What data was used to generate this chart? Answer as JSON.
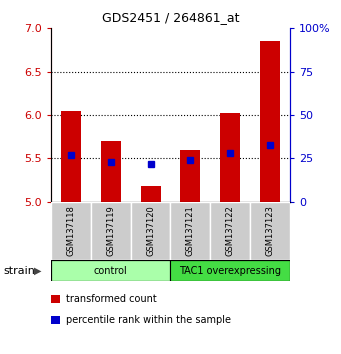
{
  "title": "GDS2451 / 264861_at",
  "samples": [
    "GSM137118",
    "GSM137119",
    "GSM137120",
    "GSM137121",
    "GSM137122",
    "GSM137123"
  ],
  "transformed_counts": [
    6.05,
    5.7,
    5.18,
    5.6,
    6.02,
    6.85
  ],
  "percentile_ranks": [
    27,
    23,
    22,
    24,
    28,
    33
  ],
  "ylim": [
    5.0,
    7.0
  ],
  "yticks": [
    5.0,
    5.5,
    6.0,
    6.5,
    7.0
  ],
  "right_yticks": [
    0,
    25,
    50,
    75,
    100
  ],
  "right_ylim": [
    0,
    100
  ],
  "bar_color": "#cc0000",
  "dot_color": "#0000cc",
  "bar_bottom": 5.0,
  "groups": [
    {
      "label": "control",
      "indices": [
        0,
        1,
        2
      ],
      "color": "#aaffaa"
    },
    {
      "label": "TAC1 overexpressing",
      "indices": [
        3,
        4,
        5
      ],
      "color": "#44dd44"
    }
  ],
  "group_label": "strain",
  "legend_items": [
    {
      "label": "transformed count",
      "color": "#cc0000"
    },
    {
      "label": "percentile rank within the sample",
      "color": "#0000cc"
    }
  ],
  "bar_width": 0.5,
  "tick_color_left": "#cc0000",
  "tick_color_right": "#0000cc",
  "xlabels_bg": "#cccccc"
}
